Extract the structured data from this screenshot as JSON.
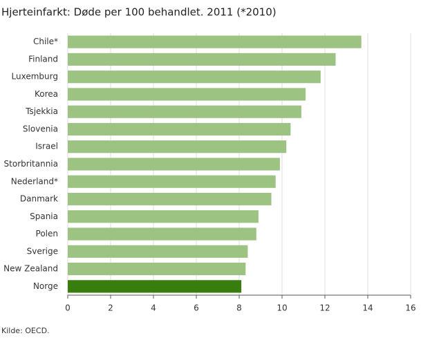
{
  "chart_data": {
    "type": "hbar",
    "title": "Hjerteinfarkt: Døde per 100 behandlet. 2011 (*2010)",
    "categories": [
      "Chile*",
      "Finland",
      "Luxemburg",
      "Korea",
      "Tsjekkia",
      "Slovenia",
      "Israel",
      "Storbritannia",
      "Nederland*",
      "Danmark",
      "Spania",
      "Polen",
      "Sverige",
      "New Zealand",
      "Norge"
    ],
    "values": [
      13.7,
      12.5,
      11.8,
      11.1,
      10.9,
      10.4,
      10.2,
      9.9,
      9.7,
      9.5,
      8.9,
      8.8,
      8.4,
      8.3,
      8.1
    ],
    "colors": [
      "#9dc383",
      "#9dc383",
      "#9dc383",
      "#9dc383",
      "#9dc383",
      "#9dc383",
      "#9dc383",
      "#9dc383",
      "#9dc383",
      "#9dc383",
      "#9dc383",
      "#9dc383",
      "#9dc383",
      "#9dc383",
      "#3a7d0f"
    ],
    "xlim": [
      0,
      16
    ],
    "xticks": [
      0,
      2,
      4,
      6,
      8,
      10,
      12,
      14,
      16
    ],
    "grid": true,
    "source": "Kilde: OECD."
  }
}
